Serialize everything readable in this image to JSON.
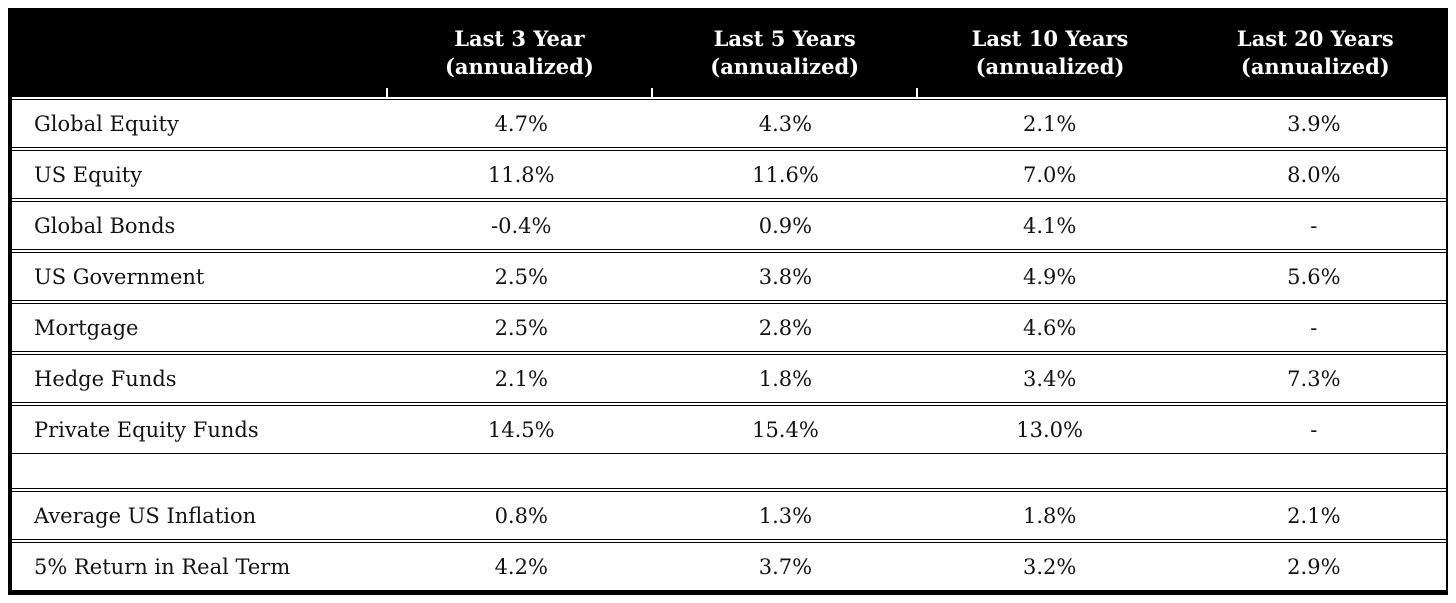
{
  "chart_data": {
    "type": "table",
    "columns": [
      {
        "label": "",
        "tick_left": false
      },
      {
        "label": "Last 3 Year\n(annualized)",
        "tick_left": true
      },
      {
        "label": "Last 5 Years\n(annualized)",
        "tick_left": true
      },
      {
        "label": "Last 10 Years\n(annualized)",
        "tick_left": true
      },
      {
        "label": "Last 20 Years\n(annualized)",
        "tick_left": false
      }
    ],
    "rows": [
      {
        "label": "Global Equity",
        "values": [
          "4.7%",
          "4.3%",
          "2.1%",
          "3.9%"
        ]
      },
      {
        "label": "US Equity",
        "values": [
          "11.8%",
          "11.6%",
          "7.0%",
          "8.0%"
        ]
      },
      {
        "label": "Global Bonds",
        "values": [
          "-0.4%",
          "0.9%",
          "4.1%",
          "-"
        ]
      },
      {
        "label": "US Government",
        "values": [
          "2.5%",
          "3.8%",
          "4.9%",
          "5.6%"
        ]
      },
      {
        "label": "Mortgage",
        "values": [
          "2.5%",
          "2.8%",
          "4.6%",
          "-"
        ]
      },
      {
        "label": "Hedge Funds",
        "values": [
          "2.1%",
          "1.8%",
          "3.4%",
          "7.3%"
        ]
      },
      {
        "label": "Private Equity Funds",
        "values": [
          "14.5%",
          "15.4%",
          "13.0%",
          "-"
        ]
      },
      {
        "type": "spacer"
      },
      {
        "label": "Average US Inflation",
        "values": [
          "0.8%",
          "1.3%",
          "1.8%",
          "2.1%"
        ]
      },
      {
        "label": "5% Return in Real Term",
        "values": [
          "4.2%",
          "3.7%",
          "3.2%",
          "2.9%"
        ]
      }
    ],
    "colors": {
      "header_bg": "#000000",
      "header_text": "#ffffff",
      "body_text": "#121212",
      "border": "#000000",
      "row_bg": "#ffffff"
    }
  }
}
